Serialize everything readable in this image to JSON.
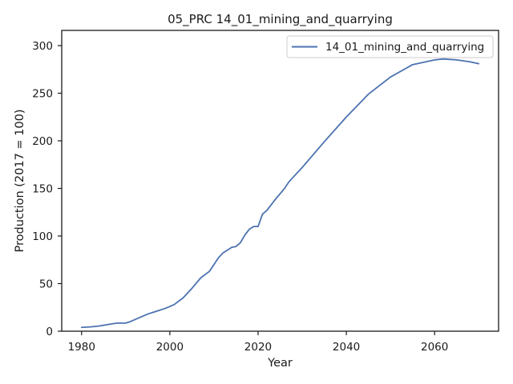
{
  "chart_data": {
    "type": "line",
    "title": "05_PRC 14_01_mining_and_quarrying",
    "xlabel": "Year",
    "ylabel": "Production (2017 = 100)",
    "xlim": [
      1975.5,
      2074.5
    ],
    "ylim": [
      0,
      316
    ],
    "xticks": [
      1980,
      2000,
      2020,
      2040,
      2060
    ],
    "yticks": [
      0,
      50,
      100,
      150,
      200,
      250,
      300
    ],
    "grid": false,
    "legend_position": "top-right",
    "series": [
      {
        "name": "14_01_mining_and_quarrying",
        "color": "#4c72b0",
        "x": [
          1980,
          1982,
          1984,
          1986,
          1988,
          1990,
          1991,
          1993,
          1995,
          1997,
          1999,
          2001,
          2003,
          2005,
          2007,
          2009,
          2011,
          2012,
          2014,
          2015,
          2016,
          2017,
          2018,
          2019,
          2020,
          2021,
          2022,
          2024,
          2026,
          2027,
          2030,
          2035,
          2040,
          2045,
          2050,
          2055,
          2060,
          2062,
          2065,
          2068,
          2070
        ],
        "y": [
          4,
          4.5,
          5.5,
          7,
          8.5,
          8.5,
          10,
          14,
          18,
          21,
          24,
          28,
          35,
          45,
          56,
          63,
          77,
          82,
          88,
          89,
          93,
          101,
          107,
          110,
          110,
          123,
          127,
          139,
          150,
          157,
          172,
          199,
          225,
          249,
          267,
          280,
          285,
          286,
          285,
          283,
          281
        ]
      }
    ]
  }
}
